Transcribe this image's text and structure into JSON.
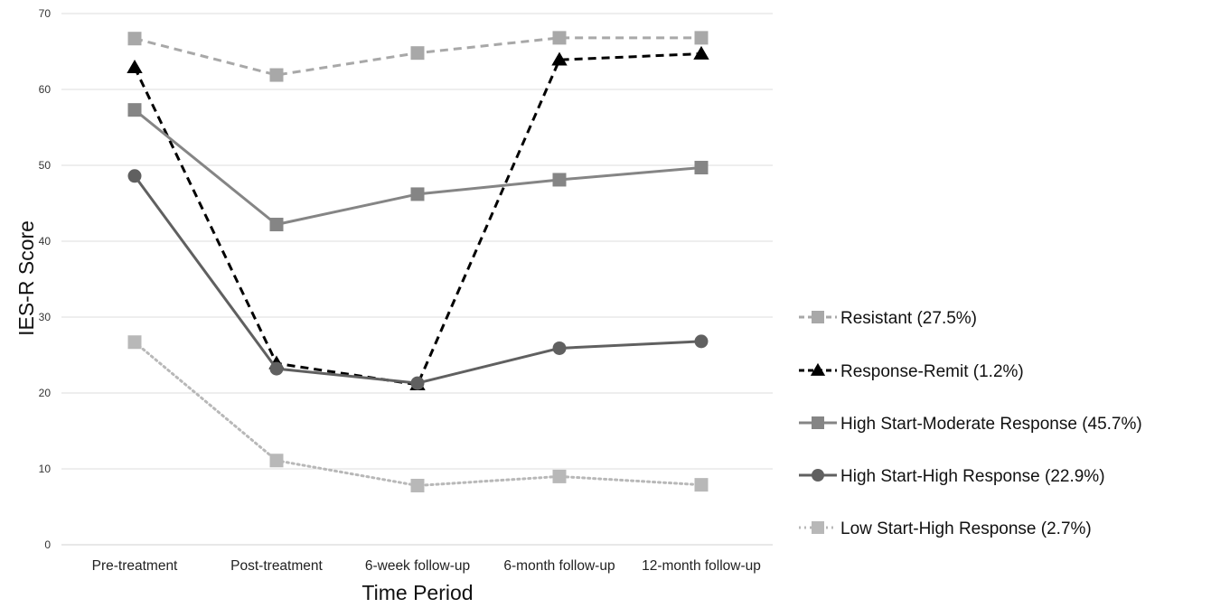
{
  "chart_data": {
    "type": "line",
    "title": "",
    "xlabel": "Time Period",
    "ylabel": "IES-R Score",
    "ylim": [
      0,
      70
    ],
    "yticks": [
      0,
      10,
      20,
      30,
      40,
      50,
      60,
      70
    ],
    "grid": true,
    "legend_position": "right",
    "categories": [
      "Pre-treatment",
      "Post-treatment",
      "6-week follow-up",
      "6-month follow-up",
      "12-month follow-up"
    ],
    "series": [
      {
        "name": "Resistant (27.5%)",
        "values": [
          66.7,
          61.9,
          64.8,
          66.8,
          66.8
        ],
        "color": "#a8a8a8",
        "line_style": "dashed",
        "marker": "square"
      },
      {
        "name": "Response-Remit (1.2%)",
        "values": [
          62.9,
          23.9,
          21.1,
          63.9,
          64.7
        ],
        "color": "#000000",
        "line_style": "dashed",
        "marker": "triangle"
      },
      {
        "name": "High Start-Moderate Response (45.7%)",
        "values": [
          57.3,
          42.2,
          46.2,
          48.1,
          49.7
        ],
        "color": "#858585",
        "line_style": "solid",
        "marker": "square"
      },
      {
        "name": "High Start-High Response (22.9%)",
        "values": [
          48.6,
          23.2,
          21.3,
          25.9,
          26.8
        ],
        "color": "#606060",
        "line_style": "solid",
        "marker": "circle"
      },
      {
        "name": "Low Start-High Response (2.7%)",
        "values": [
          26.7,
          11.1,
          7.8,
          9.0,
          7.9
        ],
        "color": "#b8b8b8",
        "line_style": "dotted",
        "marker": "square"
      }
    ]
  }
}
